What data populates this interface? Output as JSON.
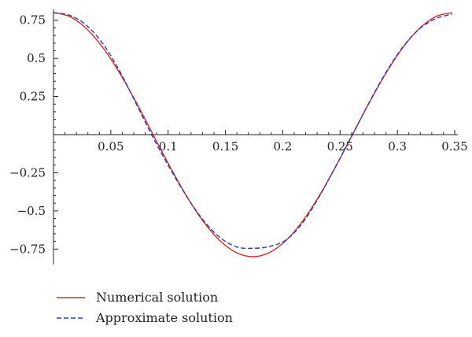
{
  "chart_data": {
    "type": "line",
    "title": "",
    "xlabel": "",
    "ylabel": "",
    "xlim": [
      0,
      0.35
    ],
    "ylim": [
      -0.8,
      0.8
    ],
    "x_ticks": [
      0.05,
      0.1,
      0.15,
      0.2,
      0.25,
      0.3,
      0.35
    ],
    "x_tick_labels": [
      "0.05",
      "0.1",
      "0.15",
      "0.2",
      "0.25",
      "0.3",
      "0.35"
    ],
    "y_ticks": [
      0.75,
      0.5,
      0.25,
      -0.25,
      -0.5,
      -0.75
    ],
    "y_tick_labels": [
      "0.75",
      "0.5",
      "0.25",
      "−0.25",
      "−0.5",
      "−0.75"
    ],
    "legend_position": "bottom-left",
    "grid": false,
    "series": [
      {
        "name": "Numerical solution",
        "color": "#d42a2a",
        "dash": "solid",
        "x": [
          0,
          0.0145,
          0.029,
          0.0435,
          0.058,
          0.0725,
          0.0869,
          0.1014,
          0.1159,
          0.1304,
          0.1449,
          0.1594,
          0.1739,
          0.1884,
          0.2029,
          0.2174,
          0.2319,
          0.2464,
          0.2608,
          0.2753,
          0.2898,
          0.3043,
          0.3188,
          0.3333,
          0.3478
        ],
        "y": [
          0.8,
          0.773,
          0.693,
          0.566,
          0.4,
          0.207,
          0,
          -0.207,
          -0.4,
          -0.566,
          -0.693,
          -0.773,
          -0.8,
          -0.773,
          -0.693,
          -0.566,
          -0.4,
          -0.207,
          0,
          0.207,
          0.4,
          0.566,
          0.693,
          0.773,
          0.8
        ]
      },
      {
        "name": "Approximate solution",
        "color": "#2b3fa8",
        "dash": "dashed",
        "x": [
          0,
          0.0145,
          0.029,
          0.0435,
          0.058,
          0.0725,
          0.0869,
          0.1014,
          0.1159,
          0.1304,
          0.1449,
          0.1594,
          0.1739,
          0.1884,
          0.2029,
          0.2174,
          0.2319,
          0.2464,
          0.2608,
          0.2753,
          0.2898,
          0.3043,
          0.3188,
          0.3333,
          0.3478
        ],
        "y": [
          0.8,
          0.781,
          0.715,
          0.592,
          0.413,
          0.197,
          -0.02,
          -0.219,
          -0.402,
          -0.558,
          -0.672,
          -0.735,
          -0.745,
          -0.733,
          -0.69,
          -0.578,
          -0.405,
          -0.205,
          0,
          0.21,
          0.405,
          0.57,
          0.69,
          0.76,
          0.79
        ]
      }
    ]
  }
}
